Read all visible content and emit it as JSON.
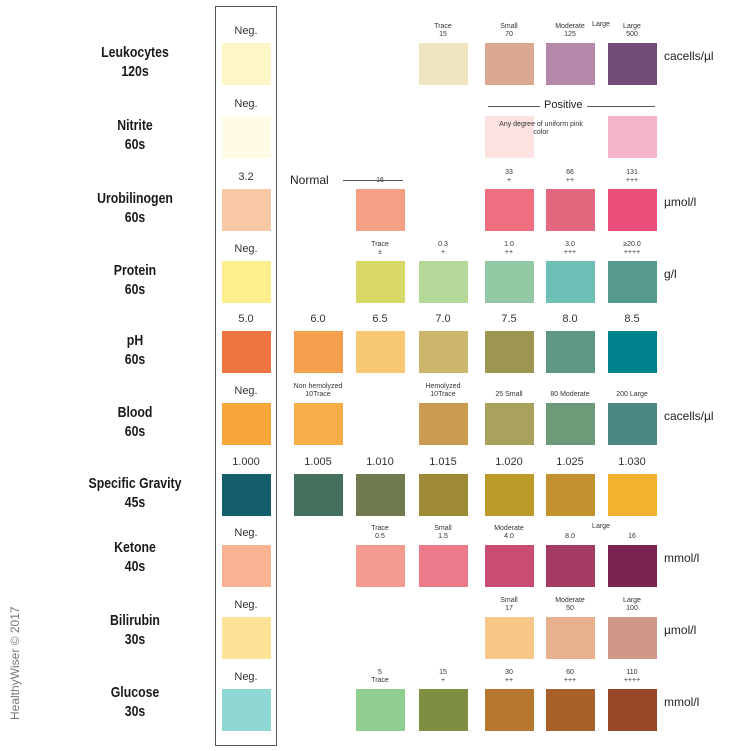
{
  "watermark": "HealthyWiser © 2017",
  "nitrite_positive_label": "Positive",
  "nitrite_positive_note": "Any degree of uniform pink color",
  "urobilinogen_normal_label": "Normal",
  "rows": [
    {
      "name": "Leukocytes",
      "time": "120s",
      "unit": "cacells/µl",
      "cap_style": "small",
      "cells": [
        {
          "col": 0,
          "color": "#fdf6c6",
          "label": "Neg."
        },
        {
          "col": 3,
          "color": "#efe6bf",
          "label": "Trace\n15"
        },
        {
          "col": 4,
          "color": "#dba992",
          "label": "Small\n70"
        },
        {
          "col": 5,
          "color": "#b488a9",
          "label": "Moderate\n125"
        },
        {
          "col": 6,
          "color": "#734b78",
          "label": "Large\n500"
        }
      ]
    },
    {
      "name": "Nitrite",
      "time": "60s",
      "unit": "",
      "cap_style": "small",
      "cells": [
        {
          "col": 0,
          "color": "#fffbe4",
          "label": "Neg."
        },
        {
          "col": 4,
          "color": "#fce2e0",
          "label": ""
        },
        {
          "col": 6,
          "color": "#f6b4c9",
          "label": ""
        }
      ]
    },
    {
      "name": "Urobilinogen",
      "time": "60s",
      "unit": "µmol/l",
      "cap_style": "small",
      "cells": [
        {
          "col": 0,
          "color": "#f9c8a5",
          "label": "3.2"
        },
        {
          "col": 2,
          "color": "#f4a085",
          "label": "16"
        },
        {
          "col": 4,
          "color": "#ef6f80",
          "label": "33\n+"
        },
        {
          "col": 5,
          "color": "#e26880",
          "label": "66\n++"
        },
        {
          "col": 6,
          "color": "#ea4f7c",
          "label": "131\n+++"
        }
      ]
    },
    {
      "name": "Protein",
      "time": "60s",
      "unit": "g/l",
      "cap_style": "small",
      "cells": [
        {
          "col": 0,
          "color": "#fdf08c",
          "label": "Neg."
        },
        {
          "col": 2,
          "color": "#d7d866",
          "label": "Trace\n±"
        },
        {
          "col": 3,
          "color": "#b4d898",
          "label": "0.3\n+"
        },
        {
          "col": 4,
          "color": "#93c8a4",
          "label": "1.0\n++"
        },
        {
          "col": 5,
          "color": "#6ebfb5",
          "label": "3.0\n+++"
        },
        {
          "col": 6,
          "color": "#55998f",
          "label": "≥20.0\n++++"
        }
      ]
    },
    {
      "name": "pH",
      "time": "60s",
      "unit": "",
      "cap_style": "big",
      "cells": [
        {
          "col": 0,
          "color": "#ee7440",
          "label": "5.0"
        },
        {
          "col": 1,
          "color": "#f4a050",
          "label": "6.0"
        },
        {
          "col": 2,
          "color": "#f9c873",
          "label": "6.5"
        },
        {
          "col": 3,
          "color": "#cbb56a",
          "label": "7.0"
        },
        {
          "col": 4,
          "color": "#9c9650",
          "label": "7.5"
        },
        {
          "col": 5,
          "color": "#5f9882",
          "label": "8.0"
        },
        {
          "col": 6,
          "color": "#00828d",
          "label": "8.5"
        }
      ]
    },
    {
      "name": "Blood",
      "time": "60s",
      "unit": "cacells/µl",
      "cap_style": "small",
      "cells": [
        {
          "col": 0,
          "color": "#f7a73a",
          "label": "Neg."
        },
        {
          "col": 1,
          "color": "#f6ad4a",
          "label": "Non hemolyzed\n10Trace"
        },
        {
          "col": 3,
          "color": "#c99a52",
          "label": "Hemolyzed\n10Trace"
        },
        {
          "col": 4,
          "color": "#a9a25c",
          "label": "25 Small"
        },
        {
          "col": 5,
          "color": "#6d9b7a",
          "label": "80 Moderate"
        },
        {
          "col": 6,
          "color": "#4d8782",
          "label": "200 Large"
        }
      ]
    },
    {
      "name": "Specific Gravity",
      "time": "45s",
      "unit": "",
      "cap_style": "big",
      "cells": [
        {
          "col": 0,
          "color": "#135d6c",
          "label": "1.000"
        },
        {
          "col": 1,
          "color": "#44715e",
          "label": "1.005"
        },
        {
          "col": 2,
          "color": "#6f7a4e",
          "label": "1.010"
        },
        {
          "col": 3,
          "color": "#9e8a36",
          "label": "1.015"
        },
        {
          "col": 4,
          "color": "#bc9a2a",
          "label": "1.020"
        },
        {
          "col": 5,
          "color": "#c1922e",
          "label": "1.025"
        },
        {
          "col": 6,
          "color": "#f2b22e",
          "label": "1.030"
        }
      ]
    },
    {
      "name": "Ketone",
      "time": "40s",
      "unit": "mmol/l",
      "cap_style": "small",
      "cells": [
        {
          "col": 0,
          "color": "#f9b392",
          "label": "Neg."
        },
        {
          "col": 2,
          "color": "#f29b8e",
          "label": "Trace\n0.5"
        },
        {
          "col": 3,
          "color": "#ec7a8b",
          "label": "Small\n1.5"
        },
        {
          "col": 4,
          "color": "#c84d70",
          "label": "Moderate\n4.0"
        },
        {
          "col": 5,
          "color": "#a33b62",
          "label": "8.0"
        },
        {
          "col": 6,
          "color": "#7a2452",
          "label": "16"
        }
      ]
    },
    {
      "name": "Bilirubin",
      "time": "30s",
      "unit": "µmol/l",
      "cap_style": "small",
      "cells": [
        {
          "col": 0,
          "color": "#fde398",
          "label": "Neg."
        },
        {
          "col": 4,
          "color": "#f8c88a",
          "label": "Small\n17"
        },
        {
          "col": 5,
          "color": "#e9b08d",
          "label": "Moderate\n50"
        },
        {
          "col": 6,
          "color": "#cf9889",
          "label": "Large\n100"
        }
      ]
    },
    {
      "name": "Glucose",
      "time": "30s",
      "unit": "mmol/l",
      "cap_style": "small",
      "cells": [
        {
          "col": 0,
          "color": "#8fd7d3",
          "label": "Neg."
        },
        {
          "col": 2,
          "color": "#8fce8e",
          "label": "5\nTrace"
        },
        {
          "col": 3,
          "color": "#7e8f42",
          "label": "15\n+"
        },
        {
          "col": 4,
          "color": "#b6772e",
          "label": "30\n++"
        },
        {
          "col": 5,
          "color": "#a8612a",
          "label": "60\n+++"
        },
        {
          "col": 6,
          "color": "#984829",
          "label": "110\n++++"
        }
      ]
    }
  ],
  "extra_labels": [
    {
      "row": 0,
      "col": 5,
      "text": "Large"
    },
    {
      "row": 7,
      "col": 5,
      "text": "Large"
    }
  ]
}
